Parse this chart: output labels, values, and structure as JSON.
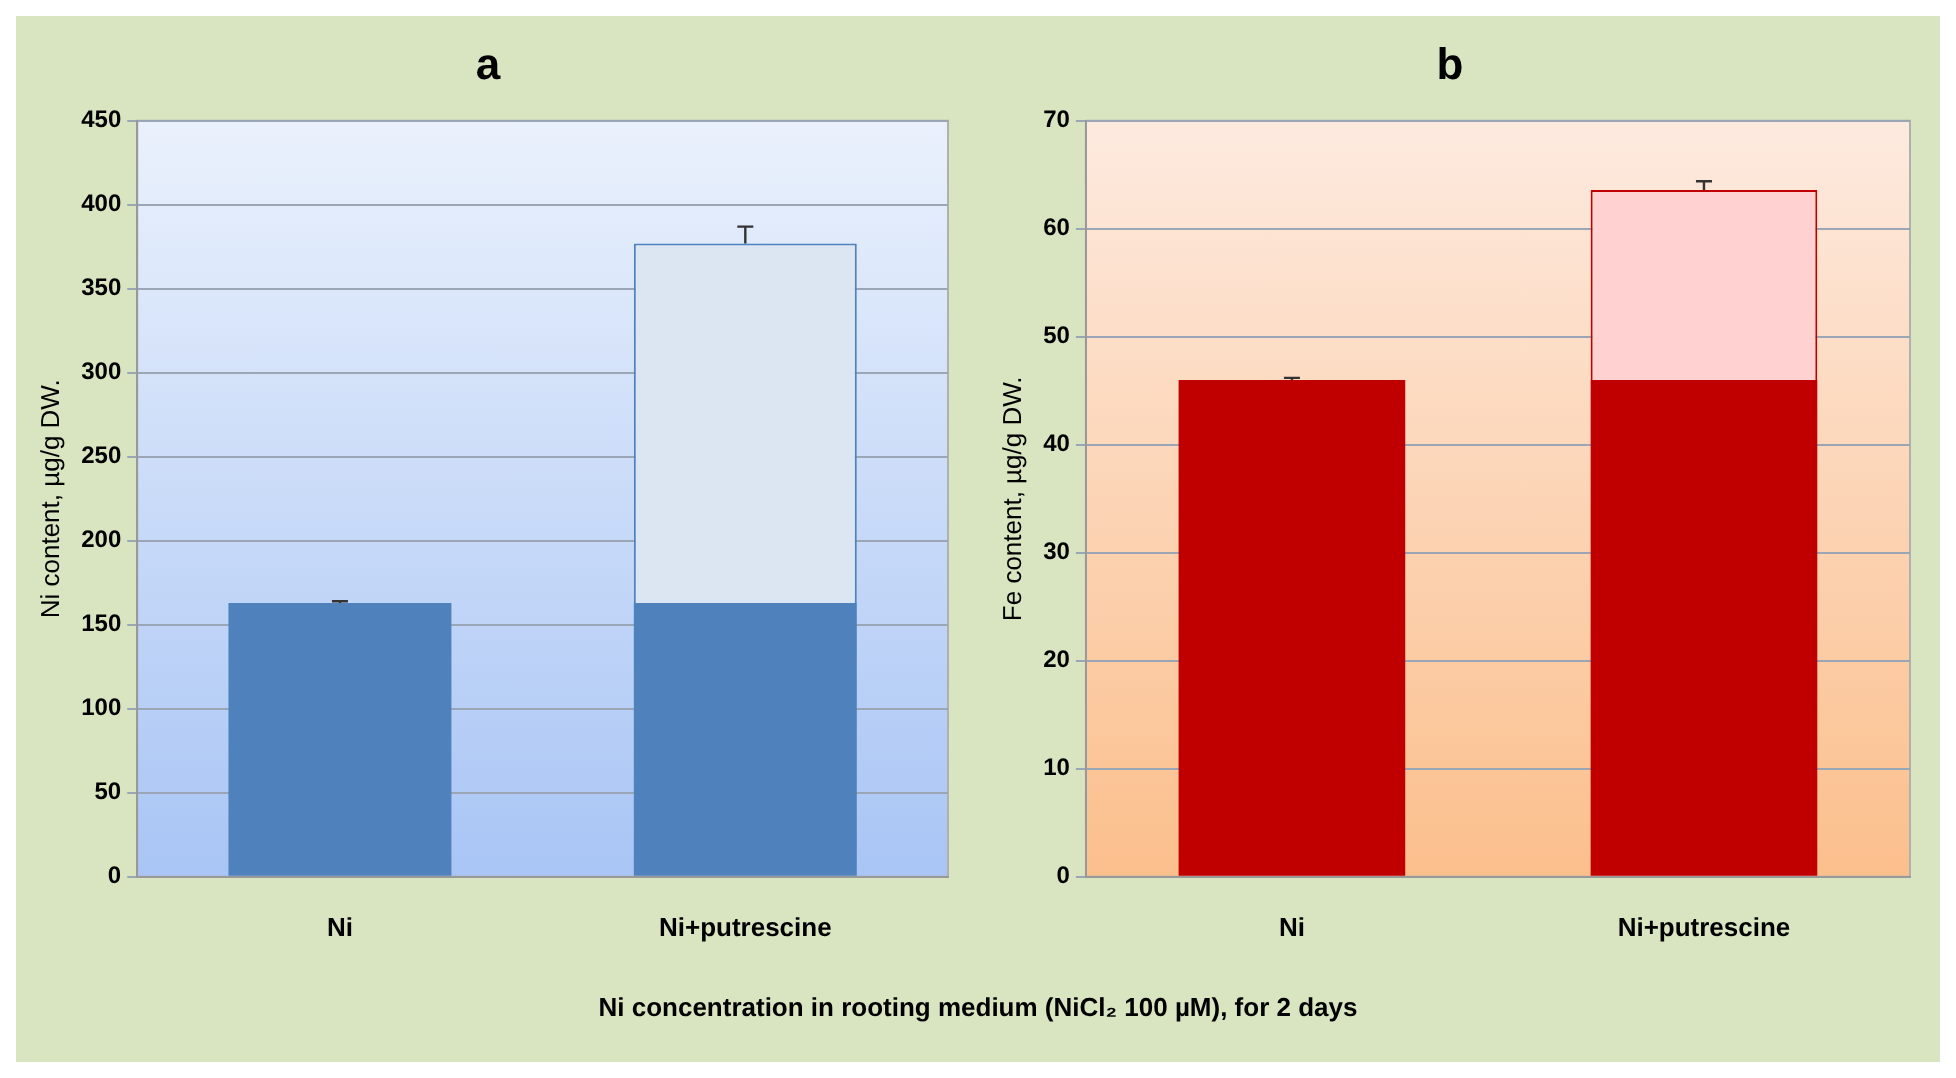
{
  "chart_data": [
    {
      "type": "bar",
      "title": "a",
      "ylabel": "Ni content, µg/g DW.",
      "categories": [
        "Ni",
        "Ni+putrescine"
      ],
      "stacked": true,
      "ylim": [
        0,
        450
      ],
      "yticks": [
        0,
        50,
        100,
        150,
        200,
        250,
        300,
        350,
        400,
        450
      ],
      "grid": "y",
      "legend": false,
      "annotations": [
        "Ni concentration in rooting medium (NiCl₂ 100 µM), for 2 days"
      ],
      "series": [
        {
          "color": "#4f81bd",
          "values": [
            163,
            163
          ],
          "errors": [
            1,
            null
          ]
        },
        {
          "color": "#dce6f2",
          "values": [
            null,
            214
          ],
          "errors": [
            null,
            10
          ]
        }
      ]
    },
    {
      "type": "bar",
      "title": "b",
      "ylabel": "Fe content, µg/g DW.",
      "categories": [
        "Ni",
        "Ni+putrescine"
      ],
      "stacked": true,
      "ylim": [
        0,
        70
      ],
      "yticks": [
        0,
        10,
        20,
        30,
        40,
        50,
        60,
        70
      ],
      "grid": "y",
      "legend": false,
      "series": [
        {
          "color": "#c00000",
          "values": [
            46,
            46
          ],
          "errors": [
            0.2,
            null
          ]
        },
        {
          "color": "#ffd1d1",
          "values": [
            null,
            17.6
          ],
          "errors": [
            null,
            0.8
          ]
        }
      ]
    }
  ]
}
